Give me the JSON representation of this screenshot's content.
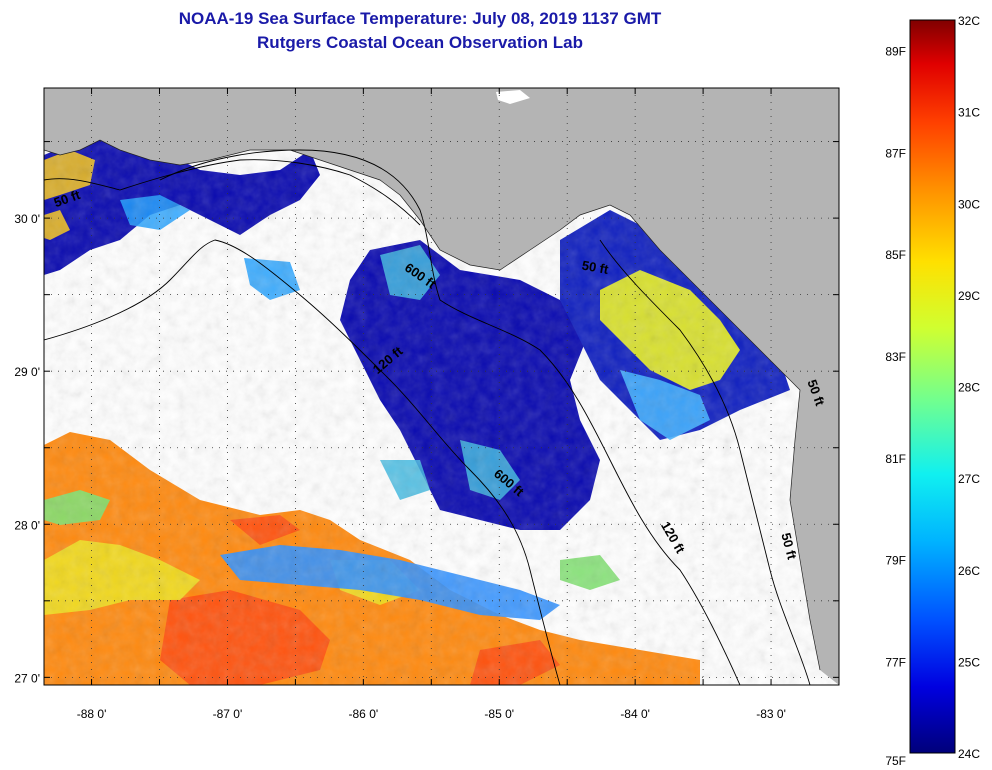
{
  "title": "NOAA-19 Sea Surface Temperature:  July 08, 2019 1137 GMT",
  "subtitle": "Rutgers Coastal Ocean Observation Lab",
  "map": {
    "lon_range": [
      -88.35,
      -82.5
    ],
    "lat_range": [
      26.95,
      30.85
    ],
    "lon_ticks": [
      -88,
      -87,
      -86,
      -85,
      -84,
      -83
    ],
    "lat_ticks": [
      27,
      28,
      29,
      30
    ],
    "lon_labels": [
      "-88 0'",
      "-87 0'",
      "-86 0'",
      "-85 0'",
      "-84 0'",
      "-83 0'"
    ],
    "lat_labels": [
      "27 0'",
      "28 0'",
      "29 0'",
      "30 0'"
    ],
    "grid": "dotted",
    "land_color": "#b4b4b4",
    "cloud_color": "#ffffff",
    "contours": [
      {
        "label": "50 ft"
      },
      {
        "label": "600 ft"
      },
      {
        "label": "120 ft"
      },
      {
        "label": "50 ft"
      },
      {
        "label": "600 ft"
      },
      {
        "label": "120 ft"
      },
      {
        "label": "50 ft"
      },
      {
        "label": "50 ft"
      }
    ]
  },
  "colorbar": {
    "celsius_labels": [
      "32C",
      "31C",
      "30C",
      "29C",
      "28C",
      "27C",
      "26C",
      "25C",
      "24C"
    ],
    "fahrenheit_labels": [
      "89F",
      "87F",
      "85F",
      "83F",
      "81F",
      "79F",
      "77F",
      "75F"
    ],
    "celsius_range": [
      24,
      32
    ],
    "colors": [
      "#00007a",
      "#0000e0",
      "#0050ff",
      "#00b4ff",
      "#10f0f0",
      "#70ff90",
      "#d0ff30",
      "#ffe000",
      "#ff9000",
      "#ff4000",
      "#e00000",
      "#800000"
    ]
  }
}
